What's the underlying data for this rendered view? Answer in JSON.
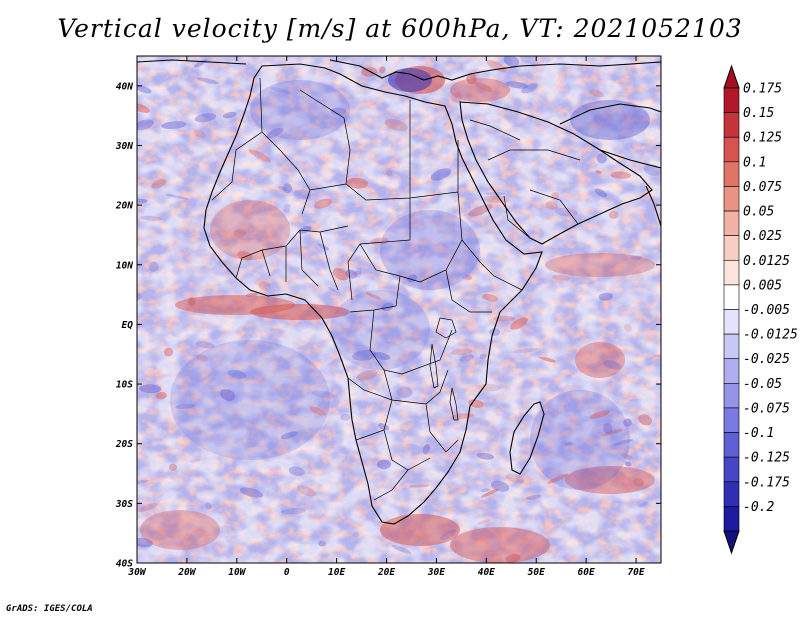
{
  "title": "Vertical velocity [m/s] at 600hPa, VT: 2021052103",
  "credit": "GrADS: IGES/COLA",
  "map": {
    "lon_range": [
      -30,
      75
    ],
    "lat_range": [
      -40,
      45
    ],
    "lon_ticks": [
      {
        "value": -30,
        "label": "30W"
      },
      {
        "value": -20,
        "label": "20W"
      },
      {
        "value": -10,
        "label": "10W"
      },
      {
        "value": 0,
        "label": "0"
      },
      {
        "value": 10,
        "label": "10E"
      },
      {
        "value": 20,
        "label": "20E"
      },
      {
        "value": 30,
        "label": "30E"
      },
      {
        "value": 40,
        "label": "40E"
      },
      {
        "value": 50,
        "label": "50E"
      },
      {
        "value": 60,
        "label": "60E"
      },
      {
        "value": 70,
        "label": "70E"
      }
    ],
    "lat_ticks": [
      {
        "value": 40,
        "label": "40N"
      },
      {
        "value": 30,
        "label": "30N"
      },
      {
        "value": 20,
        "label": "20N"
      },
      {
        "value": 10,
        "label": "10N"
      },
      {
        "value": 0,
        "label": "EQ"
      },
      {
        "value": -10,
        "label": "10S"
      },
      {
        "value": -20,
        "label": "20S"
      },
      {
        "value": -30,
        "label": "30S"
      },
      {
        "value": -40,
        "label": "40S"
      }
    ]
  },
  "colorbar": {
    "levels": [
      {
        "label": "0.175",
        "color": "#b2182b"
      },
      {
        "label": "0.15",
        "color": "#c6343b"
      },
      {
        "label": "0.125",
        "color": "#d6534f"
      },
      {
        "label": "0.1",
        "color": "#e07466"
      },
      {
        "label": "0.075",
        "color": "#ea9384"
      },
      {
        "label": "0.05",
        "color": "#f2b2a5"
      },
      {
        "label": "0.025",
        "color": "#f8cec4"
      },
      {
        "label": "0.0125",
        "color": "#fce5de"
      },
      {
        "label": "0.005",
        "color": "#ffffff"
      },
      {
        "label": "-0.005",
        "color": "#e3e3fb"
      },
      {
        "label": "-0.0125",
        "color": "#c8c8f4"
      },
      {
        "label": "-0.025",
        "color": "#aeaeee"
      },
      {
        "label": "-0.05",
        "color": "#9494e8"
      },
      {
        "label": "-0.075",
        "color": "#7a7ae0"
      },
      {
        "label": "-0.1",
        "color": "#6060d6"
      },
      {
        "label": "-0.125",
        "color": "#4646c8"
      },
      {
        "label": "-0.175",
        "color": "#2f2fb6"
      },
      {
        "label": "-0.2",
        "color": "#1b1b9e"
      }
    ],
    "top_color": "#a50f22",
    "bottom_color": "#12127f"
  },
  "colors": {
    "downward": "#d6534f",
    "upward": "#6060d6",
    "neutral": "#ffffff"
  }
}
